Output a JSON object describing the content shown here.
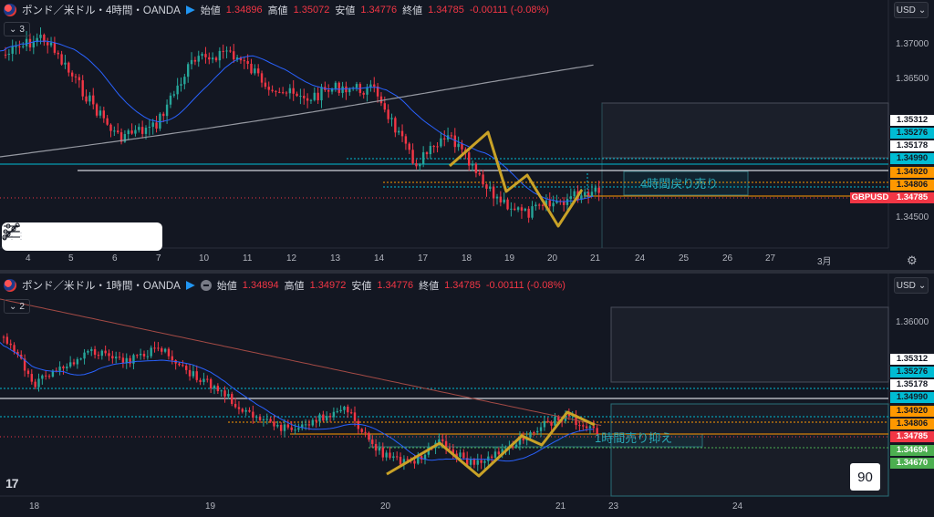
{
  "top": {
    "symbol": "ポンド／米ドル・4時間・OANDA",
    "open_label": "始値",
    "open": "1.34896",
    "high_label": "高値",
    "high": "1.35072",
    "low_label": "安値",
    "low": "1.34776",
    "close_label": "終値",
    "close": "1.34785",
    "change": "-0.00111 (-0.08%)",
    "collapse": "3",
    "currency": "USD",
    "price_axis": [
      "1.37000",
      "1.36500",
      "1.34500"
    ],
    "tags": [
      "1.35312",
      "1.35276",
      "1.35178",
      "1.34990",
      "1.34920",
      "1.34806",
      "1.34785"
    ],
    "symbol_tag": "GBPUSD",
    "time_axis": [
      "4",
      "5",
      "6",
      "7",
      "10",
      "11",
      "12",
      "13",
      "14",
      "17",
      "18",
      "19",
      "20",
      "21",
      "24",
      "25",
      "26",
      "27",
      "3月"
    ],
    "annotation": "4時間戻り売り"
  },
  "bottom": {
    "symbol": "ポンド／米ドル・1時間・OANDA",
    "open_label": "始値",
    "open": "1.34894",
    "high_label": "高値",
    "high": "1.34972",
    "low_label": "安値",
    "low": "1.34776",
    "close_label": "終値",
    "close": "1.34785",
    "change": "-0.00111 (-0.08%)",
    "collapse": "2",
    "currency": "USD",
    "price_axis": [
      "1.36000"
    ],
    "tags": [
      "1.35312",
      "1.35276",
      "1.35178",
      "1.34990",
      "1.34920",
      "1.34806",
      "1.34785",
      "1.34694",
      "1.34670"
    ],
    "time_axis": [
      "18",
      "19",
      "20",
      "21",
      "23",
      "24"
    ],
    "annotation": "1時間売り抑え",
    "badge": "90"
  },
  "tools": [
    "trend-line-tool",
    "ray-tool",
    "fib-tool",
    "horizontal-ray-tool",
    "parallel-lines-tool"
  ],
  "colors": {
    "up": "#26a69a",
    "down": "#f23645",
    "ma_blue": "#2962ff",
    "ma_gray": "#9598a1",
    "zigzag": "#c9a227",
    "cyan": "#00bcd4",
    "orange": "#ff9800",
    "green": "#4caf50",
    "background": "#131722"
  }
}
